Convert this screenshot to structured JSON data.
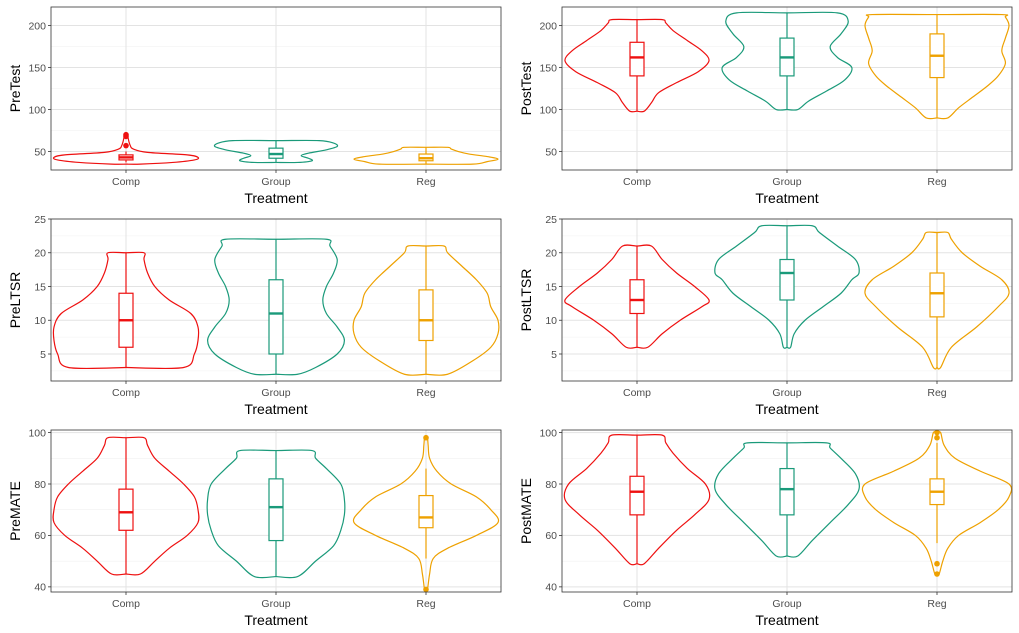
{
  "colors": {
    "Comp": "#ee1010",
    "Group": "#1a9a7a",
    "Reg": "#eea100"
  },
  "chart_data": [
    {
      "type": "violin",
      "xlabel": "Treatment",
      "ylabel": "PreTest",
      "categories": [
        "Comp",
        "Group",
        "Reg"
      ],
      "ylim": [
        28,
        222
      ],
      "yticks": [
        50,
        100,
        150,
        200
      ],
      "series": [
        {
          "category": "Comp",
          "min": 35,
          "max": 70,
          "q1": 40,
          "median": 43,
          "q3": 46,
          "whisker_low": 37,
          "whisker_high": 50,
          "outliers": [
            57,
            68,
            70
          ],
          "density": [
            [
              35,
              0.2
            ],
            [
              37,
              0.65
            ],
            [
              40,
              0.95
            ],
            [
              43,
              1.0
            ],
            [
              46,
              0.85
            ],
            [
              49,
              0.3
            ],
            [
              53,
              0.1
            ],
            [
              57,
              0.06
            ],
            [
              62,
              0.04
            ],
            [
              66,
              0.03
            ],
            [
              70,
              0.02
            ]
          ]
        },
        {
          "category": "Group",
          "min": 37,
          "max": 63,
          "q1": 42,
          "median": 47,
          "q3": 54,
          "whisker_low": 37,
          "whisker_high": 63,
          "outliers": [],
          "density": [
            [
              37,
              0.3
            ],
            [
              39,
              0.5
            ],
            [
              42,
              0.45
            ],
            [
              45,
              0.35
            ],
            [
              48,
              0.45
            ],
            [
              52,
              0.7
            ],
            [
              56,
              0.85
            ],
            [
              60,
              0.8
            ],
            [
              63,
              0.6
            ]
          ]
        },
        {
          "category": "Reg",
          "min": 35,
          "max": 55,
          "q1": 39,
          "median": 42,
          "q3": 47,
          "whisker_low": 35,
          "whisker_high": 55,
          "outliers": [],
          "density": [
            [
              35,
              0.65
            ],
            [
              38,
              0.85
            ],
            [
              41,
              1.0
            ],
            [
              44,
              0.85
            ],
            [
              47,
              0.6
            ],
            [
              50,
              0.45
            ],
            [
              53,
              0.35
            ],
            [
              55,
              0.3
            ]
          ]
        }
      ]
    },
    {
      "type": "violin",
      "xlabel": "Treatment",
      "ylabel": "PostTest",
      "categories": [
        "Comp",
        "Group",
        "Reg"
      ],
      "ylim": [
        28,
        222
      ],
      "yticks": [
        50,
        100,
        150,
        200
      ],
      "series": [
        {
          "category": "Comp",
          "min": 98,
          "max": 207,
          "q1": 140,
          "median": 162,
          "q3": 180,
          "whisker_low": 98,
          "whisker_high": 207,
          "outliers": [],
          "density": [
            [
              98,
              0.1
            ],
            [
              108,
              0.2
            ],
            [
              120,
              0.3
            ],
            [
              132,
              0.55
            ],
            [
              145,
              0.85
            ],
            [
              158,
              1.0
            ],
            [
              170,
              0.9
            ],
            [
              182,
              0.7
            ],
            [
              194,
              0.5
            ],
            [
              203,
              0.4
            ],
            [
              207,
              0.35
            ]
          ]
        },
        {
          "category": "Group",
          "min": 100,
          "max": 215,
          "q1": 140,
          "median": 162,
          "q3": 185,
          "whisker_low": 100,
          "whisker_high": 215,
          "outliers": [],
          "density": [
            [
              100,
              0.15
            ],
            [
              110,
              0.3
            ],
            [
              122,
              0.55
            ],
            [
              135,
              0.8
            ],
            [
              150,
              0.9
            ],
            [
              162,
              0.7
            ],
            [
              175,
              0.6
            ],
            [
              190,
              0.75
            ],
            [
              205,
              0.85
            ],
            [
              215,
              0.7
            ]
          ]
        },
        {
          "category": "Reg",
          "min": 90,
          "max": 213,
          "q1": 138,
          "median": 164,
          "q3": 190,
          "whisker_low": 90,
          "whisker_high": 213,
          "outliers": [],
          "density": [
            [
              90,
              0.15
            ],
            [
              102,
              0.3
            ],
            [
              115,
              0.5
            ],
            [
              128,
              0.7
            ],
            [
              140,
              0.85
            ],
            [
              155,
              0.95
            ],
            [
              170,
              0.9
            ],
            [
              185,
              0.95
            ],
            [
              200,
              1.0
            ],
            [
              210,
              0.95
            ],
            [
              213,
              0.9
            ]
          ]
        }
      ]
    },
    {
      "type": "violin",
      "xlabel": "Treatment",
      "ylabel": "PreLTSR",
      "categories": [
        "Comp",
        "Group",
        "Reg"
      ],
      "ylim": [
        1,
        25
      ],
      "yticks": [
        5,
        10,
        15,
        20,
        25
      ],
      "series": [
        {
          "category": "Comp",
          "min": 3,
          "max": 20,
          "q1": 6,
          "median": 10,
          "q3": 14,
          "whisker_low": 3,
          "whisker_high": 20,
          "outliers": [],
          "density": [
            [
              3,
              0.8
            ],
            [
              5,
              0.95
            ],
            [
              7,
              1.0
            ],
            [
              9,
              1.0
            ],
            [
              11,
              0.9
            ],
            [
              13,
              0.6
            ],
            [
              15,
              0.4
            ],
            [
              17,
              0.3
            ],
            [
              19,
              0.25
            ],
            [
              20,
              0.25
            ]
          ]
        },
        {
          "category": "Group",
          "min": 2,
          "max": 22,
          "q1": 5,
          "median": 11,
          "q3": 16,
          "whisker_low": 2,
          "whisker_high": 22,
          "outliers": [],
          "density": [
            [
              2,
              0.3
            ],
            [
              3,
              0.55
            ],
            [
              5,
              0.85
            ],
            [
              7,
              0.95
            ],
            [
              9,
              0.85
            ],
            [
              11,
              0.7
            ],
            [
              13,
              0.65
            ],
            [
              15,
              0.7
            ],
            [
              17,
              0.8
            ],
            [
              19,
              0.85
            ],
            [
              21,
              0.75
            ],
            [
              22,
              0.7
            ]
          ]
        },
        {
          "category": "Reg",
          "min": 2,
          "max": 21,
          "q1": 7,
          "median": 10,
          "q3": 14.5,
          "whisker_low": 2,
          "whisker_high": 21,
          "outliers": [],
          "density": [
            [
              2,
              0.3
            ],
            [
              4,
              0.65
            ],
            [
              6,
              0.9
            ],
            [
              8,
              1.0
            ],
            [
              10,
              1.0
            ],
            [
              12,
              0.9
            ],
            [
              14,
              0.85
            ],
            [
              16,
              0.7
            ],
            [
              18,
              0.5
            ],
            [
              20,
              0.3
            ],
            [
              21,
              0.25
            ]
          ]
        }
      ]
    },
    {
      "type": "violin",
      "xlabel": "Treatment",
      "ylabel": "PostLTSR",
      "categories": [
        "Comp",
        "Group",
        "Reg"
      ],
      "ylim": [
        1,
        25
      ],
      "yticks": [
        5,
        10,
        15,
        20,
        25
      ],
      "series": [
        {
          "category": "Comp",
          "min": 6,
          "max": 21,
          "q1": 11,
          "median": 13,
          "q3": 16,
          "whisker_low": 6,
          "whisker_high": 21,
          "outliers": [],
          "density": [
            [
              6,
              0.15
            ],
            [
              8,
              0.35
            ],
            [
              10,
              0.6
            ],
            [
              12,
              0.9
            ],
            [
              13,
              1.0
            ],
            [
              15,
              0.8
            ],
            [
              17,
              0.55
            ],
            [
              19,
              0.35
            ],
            [
              21,
              0.2
            ]
          ]
        },
        {
          "category": "Group",
          "min": 6,
          "max": 24,
          "q1": 13,
          "median": 17,
          "q3": 19,
          "whisker_low": 6,
          "whisker_high": 24,
          "outliers": [],
          "density": [
            [
              6,
              0.05
            ],
            [
              8,
              0.1
            ],
            [
              10,
              0.25
            ],
            [
              12,
              0.5
            ],
            [
              14,
              0.75
            ],
            [
              16,
              0.9
            ],
            [
              17,
              1.0
            ],
            [
              19,
              0.95
            ],
            [
              21,
              0.7
            ],
            [
              23,
              0.45
            ],
            [
              24,
              0.35
            ]
          ]
        },
        {
          "category": "Reg",
          "min": 3,
          "max": 23,
          "q1": 10.5,
          "median": 14,
          "q3": 17,
          "whisker_low": 3,
          "whisker_high": 23,
          "outliers": [],
          "density": [
            [
              3,
              0.05
            ],
            [
              6,
              0.2
            ],
            [
              9,
              0.55
            ],
            [
              12,
              0.85
            ],
            [
              14,
              1.0
            ],
            [
              16,
              0.9
            ],
            [
              18,
              0.6
            ],
            [
              20,
              0.35
            ],
            [
              22,
              0.2
            ],
            [
              23,
              0.15
            ]
          ]
        }
      ]
    },
    {
      "type": "violin",
      "xlabel": "Treatment",
      "ylabel": "PreMATE",
      "categories": [
        "Comp",
        "Group",
        "Reg"
      ],
      "ylim": [
        38,
        101
      ],
      "yticks": [
        40,
        60,
        80,
        100
      ],
      "series": [
        {
          "category": "Comp",
          "min": 45,
          "max": 98,
          "q1": 62,
          "median": 69,
          "q3": 78,
          "whisker_low": 45,
          "whisker_high": 98,
          "outliers": [],
          "density": [
            [
              45,
              0.2
            ],
            [
              50,
              0.4
            ],
            [
              55,
              0.6
            ],
            [
              60,
              0.85
            ],
            [
              65,
              1.0
            ],
            [
              70,
              1.0
            ],
            [
              75,
              0.95
            ],
            [
              80,
              0.8
            ],
            [
              85,
              0.6
            ],
            [
              90,
              0.4
            ],
            [
              95,
              0.3
            ],
            [
              98,
              0.25
            ]
          ]
        },
        {
          "category": "Group",
          "min": 44,
          "max": 93,
          "q1": 58,
          "median": 71,
          "q3": 82,
          "whisker_low": 44,
          "whisker_high": 93,
          "outliers": [],
          "density": [
            [
              44,
              0.3
            ],
            [
              50,
              0.55
            ],
            [
              56,
              0.8
            ],
            [
              62,
              0.9
            ],
            [
              68,
              0.95
            ],
            [
              74,
              0.95
            ],
            [
              80,
              0.9
            ],
            [
              86,
              0.7
            ],
            [
              90,
              0.55
            ],
            [
              93,
              0.5
            ]
          ]
        },
        {
          "category": "Reg",
          "min": 39,
          "max": 98,
          "q1": 63,
          "median": 67,
          "q3": 75.5,
          "whisker_low": 51,
          "whisker_high": 86,
          "outliers": [
            39,
            98
          ],
          "density": [
            [
              39,
              0.02
            ],
            [
              45,
              0.05
            ],
            [
              51,
              0.1
            ],
            [
              55,
              0.3
            ],
            [
              60,
              0.7
            ],
            [
              65,
              1.0
            ],
            [
              70,
              0.9
            ],
            [
              75,
              0.7
            ],
            [
              80,
              0.35
            ],
            [
              85,
              0.15
            ],
            [
              90,
              0.05
            ],
            [
              95,
              0.03
            ],
            [
              98,
              0.02
            ]
          ]
        }
      ]
    },
    {
      "type": "violin",
      "xlabel": "Treatment",
      "ylabel": "PostMATE",
      "categories": [
        "Comp",
        "Group",
        "Reg"
      ],
      "ylim": [
        38,
        101
      ],
      "yticks": [
        40,
        60,
        80,
        100
      ],
      "series": [
        {
          "category": "Comp",
          "min": 49,
          "max": 99,
          "q1": 68,
          "median": 77,
          "q3": 83,
          "whisker_low": 49,
          "whisker_high": 99,
          "outliers": [],
          "density": [
            [
              49,
              0.1
            ],
            [
              55,
              0.3
            ],
            [
              62,
              0.55
            ],
            [
              68,
              0.8
            ],
            [
              74,
              1.0
            ],
            [
              80,
              0.95
            ],
            [
              86,
              0.7
            ],
            [
              92,
              0.5
            ],
            [
              96,
              0.4
            ],
            [
              99,
              0.35
            ]
          ]
        },
        {
          "category": "Group",
          "min": 52,
          "max": 96,
          "q1": 68,
          "median": 78,
          "q3": 86,
          "whisker_low": 52,
          "whisker_high": 96,
          "outliers": [],
          "density": [
            [
              52,
              0.15
            ],
            [
              58,
              0.35
            ],
            [
              65,
              0.6
            ],
            [
              72,
              0.85
            ],
            [
              78,
              1.0
            ],
            [
              84,
              0.95
            ],
            [
              90,
              0.75
            ],
            [
              94,
              0.6
            ],
            [
              96,
              0.55
            ]
          ]
        },
        {
          "category": "Reg",
          "min": 45,
          "max": 100,
          "q1": 72,
          "median": 77,
          "q3": 82,
          "whisker_low": 57,
          "whisker_high": 96,
          "outliers": [
            45,
            49,
            98,
            100
          ],
          "density": [
            [
              45,
              0.03
            ],
            [
              50,
              0.08
            ],
            [
              55,
              0.15
            ],
            [
              60,
              0.3
            ],
            [
              65,
              0.6
            ],
            [
              70,
              0.85
            ],
            [
              75,
              1.0
            ],
            [
              80,
              1.0
            ],
            [
              85,
              0.6
            ],
            [
              90,
              0.25
            ],
            [
              95,
              0.1
            ],
            [
              100,
              0.05
            ]
          ]
        }
      ]
    }
  ]
}
